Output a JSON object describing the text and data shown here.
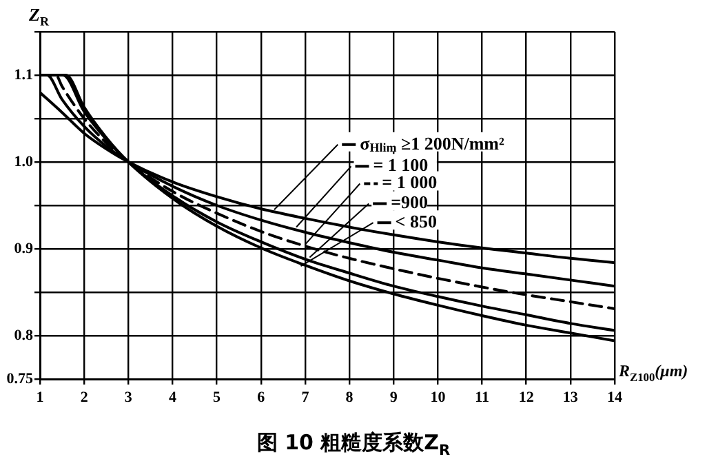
{
  "chart_data": {
    "type": "line",
    "title": "图 10  粗糙度系数Z$_{R}$",
    "xlabel": "R$_{Z100}$(μm)",
    "ylabel": "Z$_{R}$",
    "xlim": [
      1,
      14
    ],
    "xticks": [
      1,
      2,
      3,
      4,
      5,
      6,
      7,
      8,
      9,
      10,
      11,
      12,
      13,
      14
    ],
    "ylim": [
      0.75,
      1.15
    ],
    "yticks": [
      0.75,
      0.8,
      {
        "value": 0.85,
        "label": null
      },
      0.9,
      {
        "value": 0.95,
        "label": null
      },
      {
        "value": 1.0,
        "label": "1.0"
      },
      {
        "value": 1.05,
        "label": null
      },
      1.1,
      {
        "value": 1.15,
        "label": null
      }
    ],
    "grid": true,
    "legend": "right",
    "marker": "none",
    "line_style": "solid",
    "series": [
      {
        "name": "σ$_{Hlim}$ ≥1 200N/mm²",
        "color": "#000000",
        "x": [
          1,
          1.5,
          2,
          2.5,
          3,
          4,
          5,
          6,
          7,
          8,
          9,
          10,
          11,
          12,
          13,
          14
        ],
        "values": [
          1.08,
          1.057,
          1.033,
          1.015,
          1.0,
          0.977,
          0.96,
          0.946,
          0.935,
          0.925,
          0.916,
          0.908,
          0.901,
          0.895,
          0.889,
          0.884
        ]
      },
      {
        "name": "= 1 100",
        "color": "#000000",
        "x": [
          1,
          1.16,
          1.5,
          2,
          2.5,
          3,
          4,
          5,
          6,
          7,
          8,
          9,
          10,
          11,
          12,
          13,
          14
        ],
        "values": [
          1.1,
          1.1,
          1.072,
          1.041,
          1.018,
          1.0,
          0.972,
          0.95,
          0.933,
          0.919,
          0.907,
          0.896,
          0.887,
          0.878,
          0.871,
          0.864,
          0.857
        ]
      },
      {
        "name": "= 1 000",
        "color": "#000000",
        "line_style": "dashed",
        "x": [
          1,
          1.36,
          1.5,
          2,
          2.5,
          3,
          4,
          5,
          6,
          7,
          8,
          9,
          10,
          11,
          12,
          13,
          14
        ],
        "values": [
          1.1,
          1.1,
          1.087,
          1.05,
          1.022,
          1.0,
          0.966,
          0.941,
          0.92,
          0.903,
          0.889,
          0.877,
          0.866,
          0.856,
          0.847,
          0.839,
          0.831
        ]
      },
      {
        "name": "=900",
        "color": "#000000",
        "x": [
          1,
          1.52,
          2,
          2.5,
          3,
          4,
          5,
          6,
          7,
          8,
          9,
          10,
          11,
          12,
          13,
          14
        ],
        "values": [
          1.1,
          1.1,
          1.058,
          1.026,
          1.0,
          0.961,
          0.931,
          0.908,
          0.888,
          0.872,
          0.857,
          0.845,
          0.834,
          0.824,
          0.814,
          0.806
        ]
      },
      {
        "name": "< 850",
        "color": "#000000",
        "x": [
          1,
          1.59,
          2,
          2.5,
          3,
          4,
          5,
          6,
          7,
          8,
          9,
          10,
          11,
          12,
          13,
          14
        ],
        "values": [
          1.1,
          1.1,
          1.063,
          1.028,
          1.0,
          0.958,
          0.926,
          0.901,
          0.881,
          0.863,
          0.848,
          0.835,
          0.823,
          0.812,
          0.803,
          0.794
        ]
      }
    ]
  }
}
